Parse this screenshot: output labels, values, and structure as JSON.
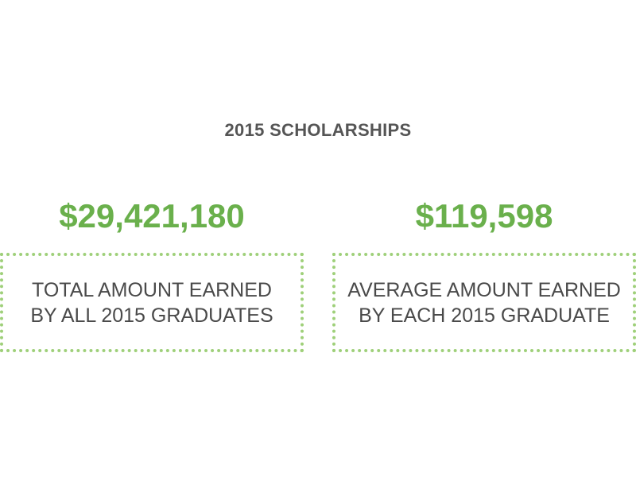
{
  "title": "2015 SCHOLARSHIPS",
  "accent_color": "#6ab04c",
  "border_color": "#9fd07a",
  "stats": [
    {
      "value": "$29,421,180",
      "label_line1": "TOTAL AMOUNT EARNED",
      "label_line2": "BY ALL 2015 GRADUATES"
    },
    {
      "value": "$119,598",
      "label_line1": "AVERAGE AMOUNT EARNED",
      "label_line2": "BY EACH 2015 GRADUATE"
    }
  ]
}
